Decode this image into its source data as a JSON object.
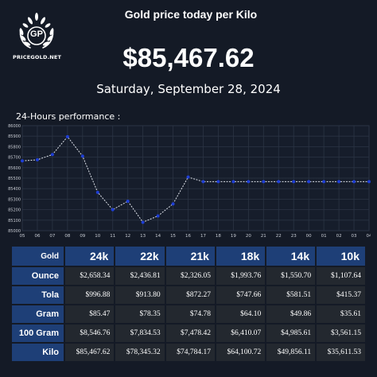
{
  "logo": {
    "initials": "GP",
    "site_name": "PRICEGOLD.NET"
  },
  "header": {
    "title": "Gold price today per Kilo",
    "price": "$85,467.62",
    "date": "Saturday, September 28, 2024"
  },
  "performance": {
    "label": "24-Hours performance :"
  },
  "colors": {
    "background": "#141a26",
    "header_cell": "#1e3f77",
    "data_cell": "#23282f",
    "line": "#e0e4ec",
    "point": "#1f3fd6",
    "grid": "#2b3444"
  },
  "chart_data": {
    "type": "line",
    "x": [
      "05",
      "06",
      "07",
      "08",
      "09",
      "10",
      "11",
      "12",
      "13",
      "14",
      "15",
      "16",
      "17",
      "18",
      "19",
      "20",
      "21",
      "22",
      "23",
      "00",
      "01",
      "02",
      "03",
      "04"
    ],
    "y": [
      85665,
      85675,
      85725,
      85895,
      85710,
      85365,
      85200,
      85280,
      85080,
      85140,
      85255,
      85510,
      85467,
      85467,
      85467,
      85467,
      85467,
      85467,
      85467,
      85467,
      85467,
      85467,
      85467,
      85467
    ],
    "ylim": [
      85000,
      86000
    ],
    "yticks": [
      85000,
      85100,
      85200,
      85300,
      85400,
      85500,
      85600,
      85700,
      85800,
      85900,
      86000
    ],
    "grid": true,
    "xlabel": "",
    "ylabel": ""
  },
  "table": {
    "corner": "Gold",
    "columns": [
      "24k",
      "22k",
      "21k",
      "18k",
      "14k",
      "10k"
    ],
    "rows": [
      {
        "label": "Ounce",
        "values": [
          "$2,658.34",
          "$2,436.81",
          "$2,326.05",
          "$1,993.76",
          "$1,550.70",
          "$1,107.64"
        ]
      },
      {
        "label": "Tola",
        "values": [
          "$996.88",
          "$913.80",
          "$872.27",
          "$747.66",
          "$581.51",
          "$415.37"
        ]
      },
      {
        "label": "Gram",
        "values": [
          "$85.47",
          "$78.35",
          "$74.78",
          "$64.10",
          "$49.86",
          "$35.61"
        ]
      },
      {
        "label": "100 Gram",
        "values": [
          "$8,546.76",
          "$7,834.53",
          "$7,478.42",
          "$6,410.07",
          "$4,985.61",
          "$3,561.15"
        ]
      },
      {
        "label": "Kilo",
        "values": [
          "$85,467.62",
          "$78,345.32",
          "$74,784.17",
          "$64,100.72",
          "$49,856.11",
          "$35,611.53"
        ]
      }
    ]
  }
}
